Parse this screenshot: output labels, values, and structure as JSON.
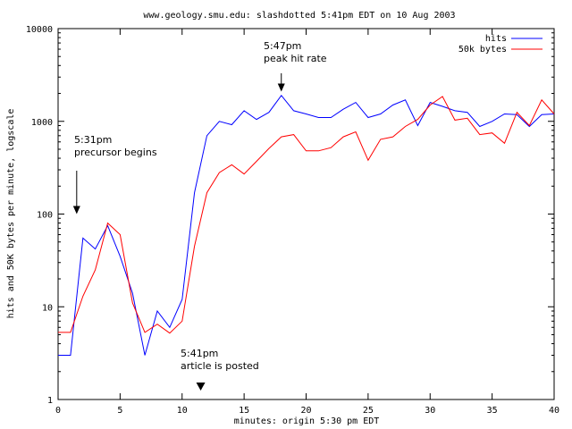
{
  "chart_data": {
    "type": "line",
    "title": "www.geology.smu.edu: slashdotted 5:41pm EDT on 10 Aug 2003",
    "xlabel": "minutes: origin 5:30 pm EDT",
    "ylabel": "hits and 50K bytes per minute, logscale",
    "xlim": [
      0,
      40
    ],
    "ylim": [
      1,
      10000
    ],
    "yscale": "log",
    "grid": false,
    "legend_position": "top-right",
    "x_ticks": [
      0,
      5,
      10,
      15,
      20,
      25,
      30,
      35,
      40
    ],
    "y_ticks": [
      1,
      10,
      100,
      1000,
      10000
    ],
    "x_tick_labels": [
      "0",
      "5",
      "10",
      "15",
      "20",
      "25",
      "30",
      "35",
      "40"
    ],
    "y_tick_labels": [
      "1",
      "10",
      "100",
      "1000",
      "10000"
    ],
    "series": [
      {
        "name": "hits",
        "color": "#0000ff",
        "x": [
          0,
          1,
          2,
          3,
          4,
          5,
          6,
          7,
          8,
          9,
          10,
          11,
          12,
          13,
          14,
          15,
          16,
          17,
          18,
          19,
          20,
          21,
          22,
          23,
          24,
          25,
          26,
          27,
          28,
          29,
          30,
          31,
          32,
          33,
          34,
          35,
          36,
          37,
          38,
          39,
          40
        ],
        "values": [
          3,
          3,
          55,
          42,
          75,
          35,
          14,
          3,
          9,
          6,
          12,
          170,
          700,
          1000,
          920,
          1300,
          1050,
          1250,
          1900,
          1300,
          1200,
          1100,
          1100,
          1350,
          1600,
          1100,
          1200,
          1500,
          1700,
          900,
          1600,
          1450,
          1300,
          1250,
          880,
          1000,
          1200,
          1180,
          880,
          1180,
          1200
        ]
      },
      {
        "name": "50k bytes",
        "color": "#ff0000",
        "x": [
          0,
          1,
          2,
          3,
          4,
          5,
          6,
          7,
          8,
          9,
          10,
          11,
          12,
          13,
          14,
          15,
          16,
          17,
          18,
          19,
          20,
          21,
          22,
          23,
          24,
          25,
          26,
          27,
          28,
          29,
          30,
          31,
          32,
          33,
          34,
          35,
          36,
          37,
          38,
          39,
          40
        ],
        "values": [
          5.3,
          5.3,
          13,
          25,
          80,
          60,
          11,
          5.3,
          6.5,
          5.2,
          7,
          45,
          170,
          280,
          340,
          270,
          370,
          510,
          680,
          720,
          480,
          480,
          520,
          680,
          770,
          380,
          640,
          680,
          880,
          1050,
          1500,
          1850,
          1030,
          1080,
          720,
          750,
          580,
          1250,
          900,
          1700,
          1200
        ]
      }
    ],
    "annotations": [
      {
        "line1": "5:31pm",
        "line2": "precursor begins",
        "marker": "arrow-down",
        "x": 1.5,
        "y": 100
      },
      {
        "line1": "5:47pm",
        "line2": "peak hit rate",
        "marker": "arrow-down",
        "x": 18,
        "y": 2000
      },
      {
        "line1": "5:41pm",
        "line2": "article is posted",
        "marker": "triangle-down",
        "x": 11.5,
        "y": 1
      }
    ]
  }
}
